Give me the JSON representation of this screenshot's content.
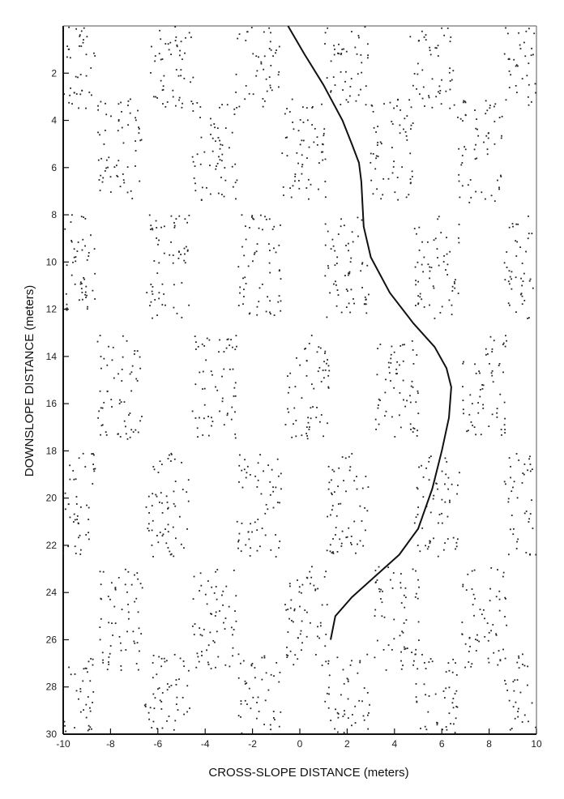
{
  "chart_data": {
    "type": "scatter",
    "title": "",
    "xlabel": "CROSS-SLOPE DISTANCE (meters)",
    "ylabel": "DOWNSLOPE DISTANCE (meters)",
    "xlim": [
      -10,
      10
    ],
    "ylim": [
      30,
      0
    ],
    "x_ticks": [
      "-10",
      "-8",
      "-6",
      "-4",
      "-2",
      "0",
      "2",
      "4",
      "6",
      "8",
      "10"
    ],
    "y_ticks": [
      "2",
      "4",
      "6",
      "8",
      "10",
      "12",
      "14",
      "16",
      "18",
      "20",
      "22",
      "24",
      "26",
      "28",
      "30"
    ],
    "grid": false,
    "legend": "none",
    "series": [
      {
        "kind": "points",
        "patches": [
          {
            "cx": -9.6,
            "cy": 1.3
          },
          {
            "cx": -5.4,
            "cy": 1.3
          },
          {
            "cx": -1.8,
            "cy": 1.3
          },
          {
            "cx": 2.0,
            "cy": 1.3
          },
          {
            "cx": 5.6,
            "cy": 1.3
          },
          {
            "cx": 9.6,
            "cy": 1.3
          },
          {
            "cx": -7.6,
            "cy": 5.3
          },
          {
            "cx": -3.6,
            "cy": 5.3
          },
          {
            "cx": 0.2,
            "cy": 5.3
          },
          {
            "cx": 3.9,
            "cy": 5.3
          },
          {
            "cx": 7.6,
            "cy": 5.3
          },
          {
            "cx": -9.6,
            "cy": 10.2
          },
          {
            "cx": -5.6,
            "cy": 10.2
          },
          {
            "cx": -1.7,
            "cy": 10.2
          },
          {
            "cx": 2.0,
            "cy": 10.2
          },
          {
            "cx": 5.8,
            "cy": 10.2
          },
          {
            "cx": 9.6,
            "cy": 10.2
          },
          {
            "cx": -7.6,
            "cy": 15.3
          },
          {
            "cx": -3.6,
            "cy": 15.3
          },
          {
            "cx": 0.3,
            "cy": 15.3
          },
          {
            "cx": 4.1,
            "cy": 15.3
          },
          {
            "cx": 7.8,
            "cy": 15.3
          },
          {
            "cx": -9.6,
            "cy": 20.3
          },
          {
            "cx": -5.6,
            "cy": 20.3
          },
          {
            "cx": -1.7,
            "cy": 20.3
          },
          {
            "cx": 2.0,
            "cy": 20.3
          },
          {
            "cx": 5.8,
            "cy": 20.3
          },
          {
            "cx": 9.6,
            "cy": 20.3
          },
          {
            "cx": -7.6,
            "cy": 25.1
          },
          {
            "cx": -3.6,
            "cy": 25.1
          },
          {
            "cx": 0.3,
            "cy": 25.1
          },
          {
            "cx": 4.1,
            "cy": 25.1
          },
          {
            "cx": 7.8,
            "cy": 25.1
          },
          {
            "cx": -9.6,
            "cy": 28.8
          },
          {
            "cx": -5.6,
            "cy": 28.8
          },
          {
            "cx": -1.7,
            "cy": 28.8
          },
          {
            "cx": 2.0,
            "cy": 28.8
          },
          {
            "cx": 5.8,
            "cy": 28.8
          },
          {
            "cx": 9.6,
            "cy": 28.8
          }
        ],
        "patch_halfwidth": 0.95,
        "patch_halfheight": 2.2,
        "points_per_patch": 62
      },
      {
        "kind": "line",
        "x": [
          -0.5,
          0.2,
          1.0,
          1.8,
          2.2,
          2.5,
          2.6,
          2.7,
          3.0,
          3.8,
          4.8,
          5.7,
          6.2,
          6.4,
          6.3,
          6.0,
          5.6,
          5.0,
          4.2,
          3.2,
          2.2,
          1.5,
          1.3
        ],
        "y": [
          0.0,
          1.2,
          2.5,
          4.0,
          5.0,
          5.8,
          6.6,
          8.5,
          9.8,
          11.3,
          12.6,
          13.6,
          14.5,
          15.3,
          16.6,
          18.0,
          19.6,
          21.3,
          22.4,
          23.3,
          24.2,
          25.0,
          26.0
        ]
      }
    ]
  }
}
